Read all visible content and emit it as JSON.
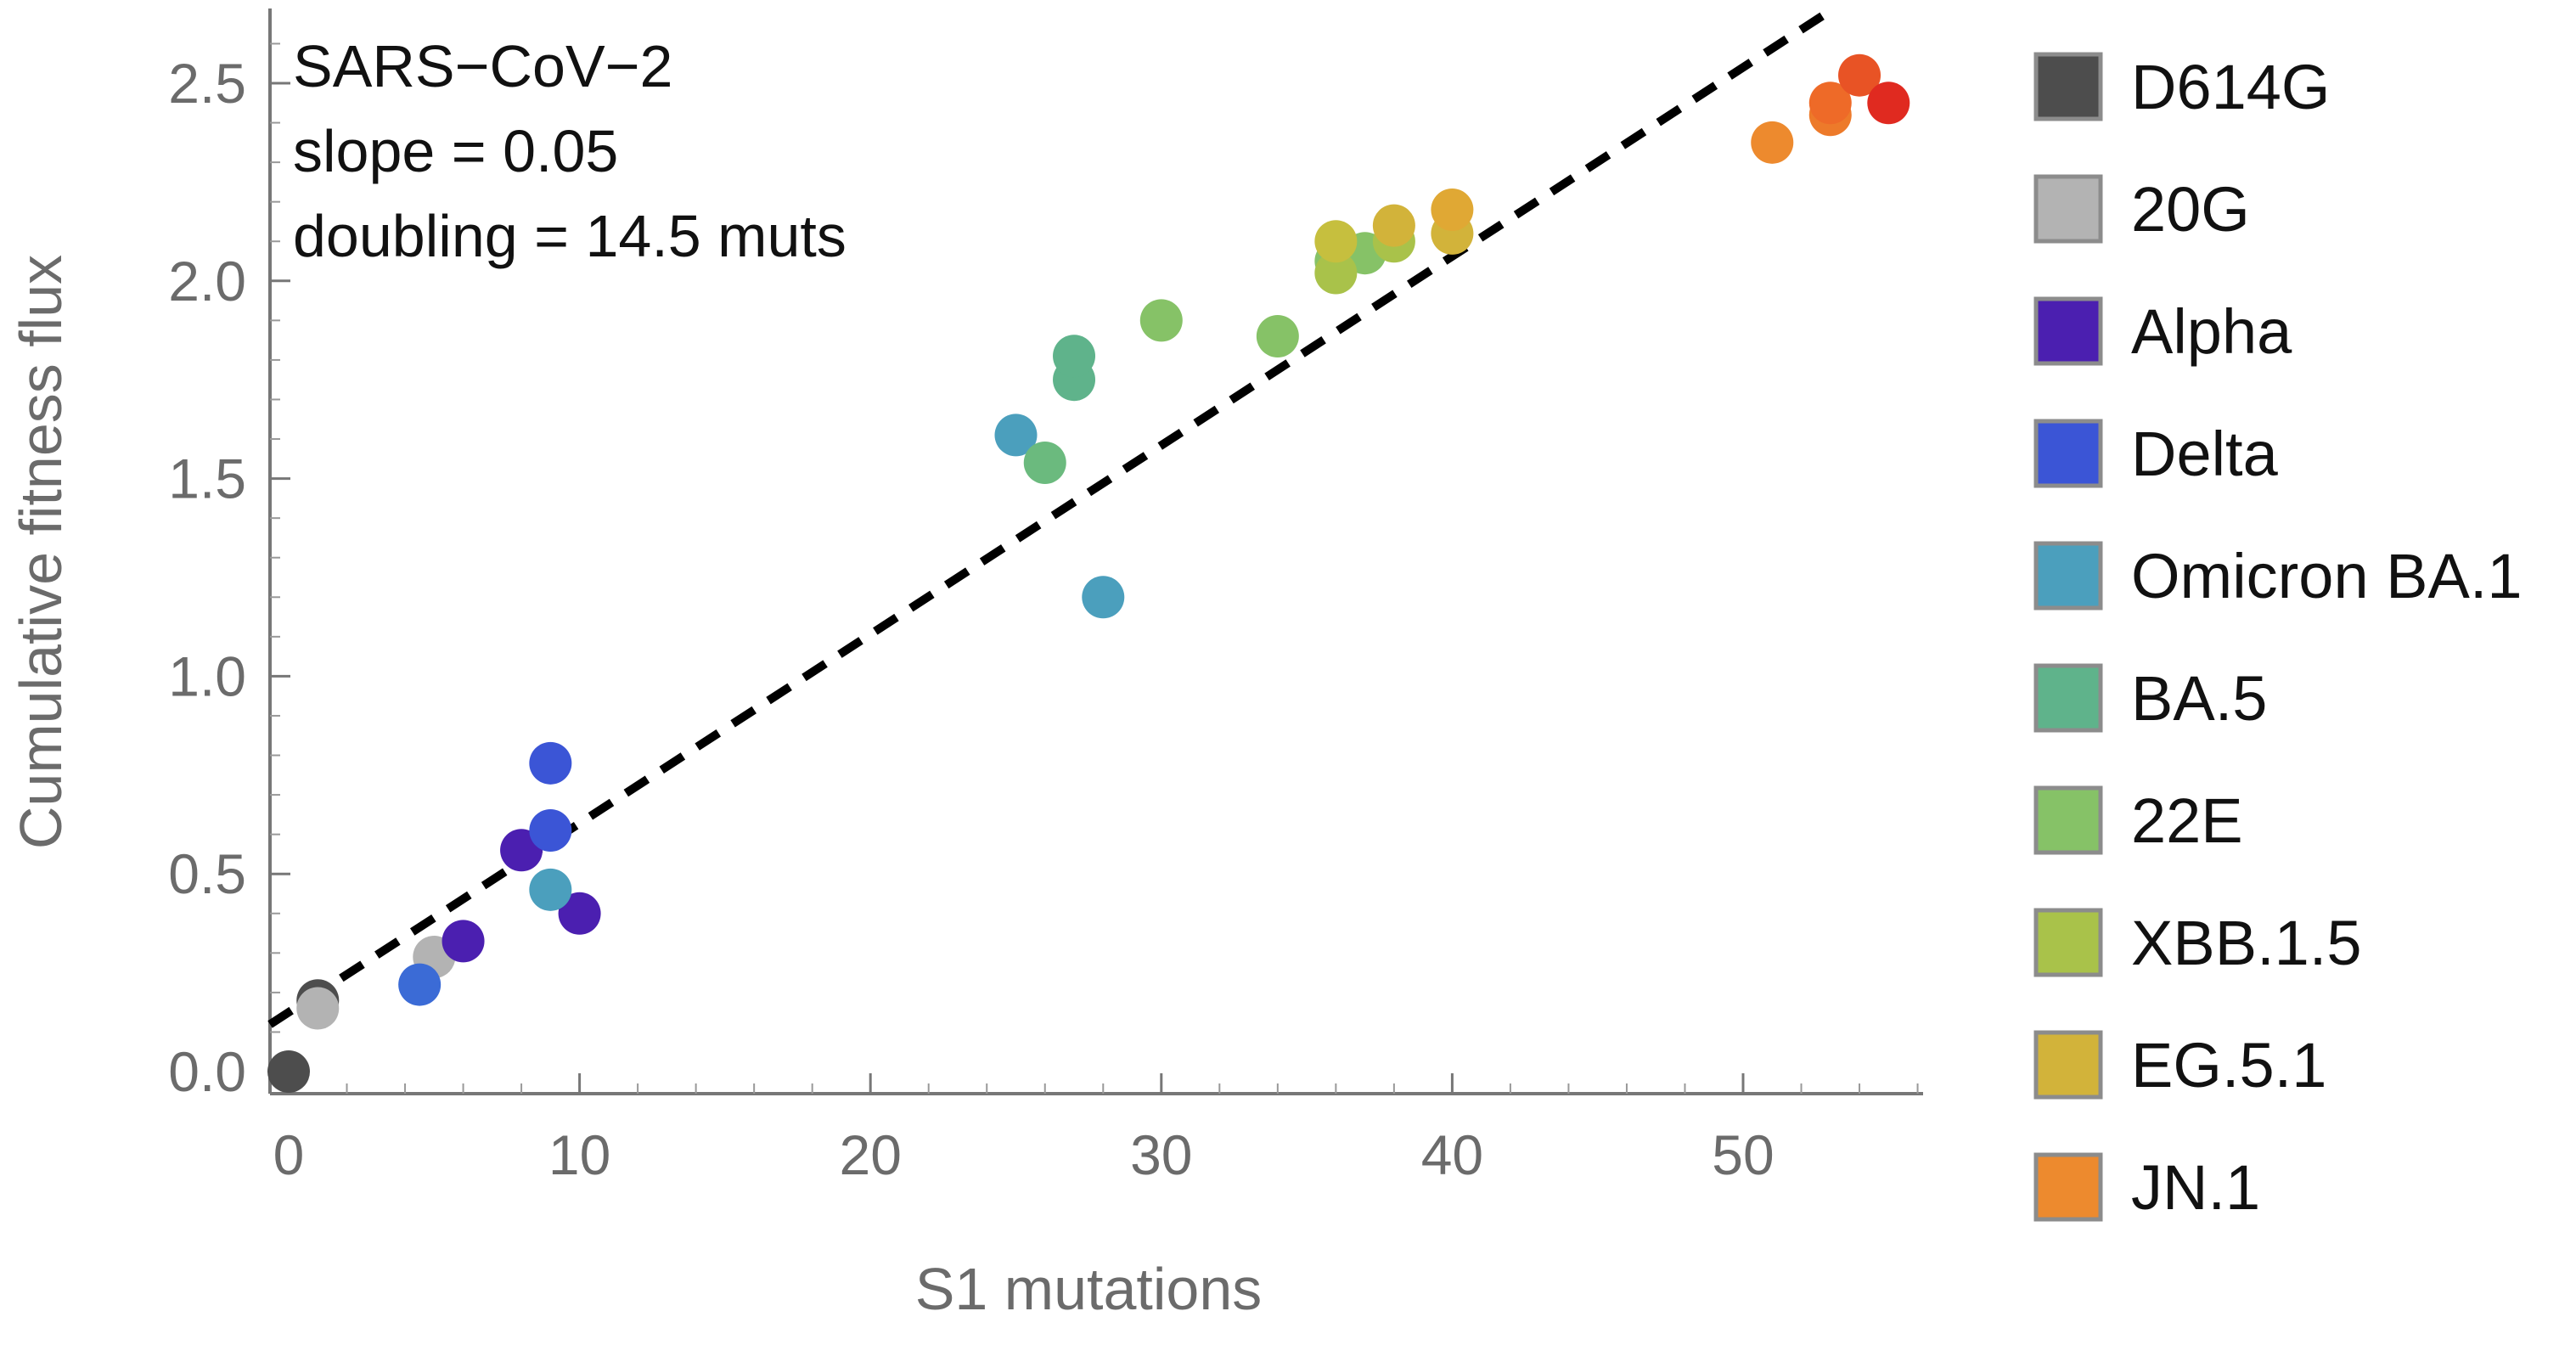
{
  "chart_data": {
    "type": "scatter",
    "xlabel": "S1 mutations",
    "ylabel": "Cumulative fitness flux",
    "xlim": [
      -0.6,
      56
    ],
    "ylim": [
      -0.06,
      2.7
    ],
    "x_ticks": [
      0,
      10,
      20,
      30,
      40,
      50
    ],
    "y_ticks": [
      0.0,
      0.5,
      1.0,
      1.5,
      2.0,
      2.5
    ],
    "x_tick_labels": [
      "0",
      "10",
      "20",
      "30",
      "40",
      "50"
    ],
    "y_tick_labels": [
      "0.0",
      "0.5",
      "1.0",
      "1.5",
      "2.0",
      "2.5"
    ],
    "annotations": [
      "SARS−CoV−2",
      "slope = 0.05",
      "doubling = 14.5 muts"
    ],
    "fit_line": {
      "style": "dashed",
      "color": "#000000",
      "slope": 0.0478,
      "intercept": 0.15
    },
    "legend_position": "right",
    "legend": [
      {
        "label": "D614G",
        "color": "#4d4d4d"
      },
      {
        "label": "20G",
        "color": "#b3b3b3"
      },
      {
        "label": "Alpha",
        "color": "#4b1fb0"
      },
      {
        "label": "Delta",
        "color": "#3b55d6"
      },
      {
        "label": "Omicron BA.1",
        "color": "#4b9fbd"
      },
      {
        "label": "BA.5",
        "color": "#5fb38b"
      },
      {
        "label": "22E",
        "color": "#86c267"
      },
      {
        "label": "XBB.1.5",
        "color": "#a9c24a"
      },
      {
        "label": "EG.5.1",
        "color": "#d2b33a"
      },
      {
        "label": "JN.1",
        "color": "#ed8a2e"
      }
    ],
    "points": [
      {
        "x": 0,
        "y": 0.0,
        "color": "#4d4d4d"
      },
      {
        "x": 1,
        "y": 0.18,
        "color": "#4d4d4d"
      },
      {
        "x": 1,
        "y": 0.16,
        "color": "#b3b3b3"
      },
      {
        "x": 5,
        "y": 0.29,
        "color": "#b3b3b3"
      },
      {
        "x": 4.5,
        "y": 0.22,
        "color": "#3b6bd6"
      },
      {
        "x": 6,
        "y": 0.33,
        "color": "#4b1fb0"
      },
      {
        "x": 8,
        "y": 0.56,
        "color": "#4b1fb0"
      },
      {
        "x": 10,
        "y": 0.4,
        "color": "#4b1fb0"
      },
      {
        "x": 9,
        "y": 0.78,
        "color": "#3b55d6"
      },
      {
        "x": 9,
        "y": 0.61,
        "color": "#3b55d6"
      },
      {
        "x": 9,
        "y": 0.46,
        "color": "#4b9fbd"
      },
      {
        "x": 25,
        "y": 1.61,
        "color": "#4b9fbd"
      },
      {
        "x": 28,
        "y": 1.2,
        "color": "#4b9fbd"
      },
      {
        "x": 26,
        "y": 1.54,
        "color": "#6bba7e"
      },
      {
        "x": 27,
        "y": 1.75,
        "color": "#5fb38b"
      },
      {
        "x": 27,
        "y": 1.81,
        "color": "#5fb38b"
      },
      {
        "x": 30,
        "y": 1.9,
        "color": "#86c267"
      },
      {
        "x": 34,
        "y": 1.86,
        "color": "#86c267"
      },
      {
        "x": 36,
        "y": 2.05,
        "color": "#86c267"
      },
      {
        "x": 37,
        "y": 2.07,
        "color": "#86c267"
      },
      {
        "x": 36,
        "y": 2.02,
        "color": "#a9c24a"
      },
      {
        "x": 38,
        "y": 2.1,
        "color": "#a9c24a"
      },
      {
        "x": 36,
        "y": 2.1,
        "color": "#c6bf3e"
      },
      {
        "x": 38,
        "y": 2.14,
        "color": "#d2b33a"
      },
      {
        "x": 40,
        "y": 2.12,
        "color": "#d2b33a"
      },
      {
        "x": 40,
        "y": 2.18,
        "color": "#e0a834"
      },
      {
        "x": 51,
        "y": 2.35,
        "color": "#ed8a2e"
      },
      {
        "x": 53,
        "y": 2.42,
        "color": "#ed7a2a"
      },
      {
        "x": 53,
        "y": 2.45,
        "color": "#ee6a28"
      },
      {
        "x": 54,
        "y": 2.52,
        "color": "#e85325"
      },
      {
        "x": 55,
        "y": 2.45,
        "color": "#e02a20"
      }
    ]
  }
}
